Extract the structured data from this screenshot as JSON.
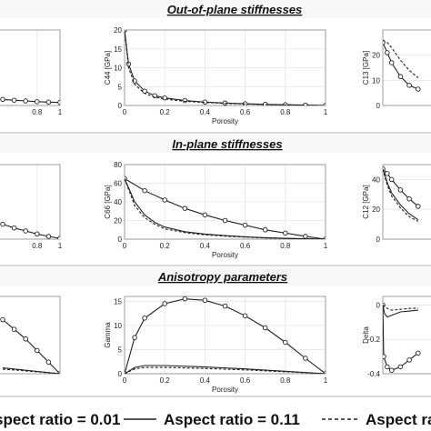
{
  "section_titles": [
    "Out-of-plane stiffnesses",
    "In-plane stiffnesses",
    "Anisotropy parameters"
  ],
  "legend": [
    {
      "label": "spect ratio = 0.01",
      "style": "none"
    },
    {
      "label": "Aspect ratio = 0.11",
      "style": "solid"
    },
    {
      "label": "Aspect ra",
      "style": "dashed"
    }
  ],
  "colors": {
    "line": "#222222",
    "frame": "#888888",
    "grid": "#e6e6e6",
    "header_bg": "#f7f7f7"
  },
  "chart_data": [
    {
      "type": "line",
      "ylabel": "",
      "xlabel": "",
      "xlim": [
        0,
        1
      ],
      "xticks": [
        0.8,
        1
      ],
      "ylim": [
        0,
        20
      ],
      "yticks": [],
      "series": [
        {
          "style": "solid",
          "markers": true,
          "x": [
            0.5,
            0.6,
            0.7,
            0.8,
            0.9,
            1.0
          ],
          "y": [
            1.6,
            1.4,
            1.2,
            1.0,
            0.9,
            0.8
          ]
        }
      ]
    },
    {
      "type": "line",
      "ylabel": "C44 [GPa]",
      "xlabel": "Porosity",
      "xlim": [
        0,
        1
      ],
      "xticks": [
        0,
        0.2,
        0.4,
        0.6,
        0.8,
        1
      ],
      "ylim": [
        0,
        20
      ],
      "yticks": [
        0,
        5,
        10,
        15,
        20
      ],
      "series": [
        {
          "style": "solid",
          "markers": true,
          "x": [
            0,
            0.02,
            0.05,
            0.1,
            0.15,
            0.2,
            0.3,
            0.4,
            0.5,
            0.6,
            0.7,
            0.8,
            0.9,
            1.0
          ],
          "y": [
            20,
            11,
            6.5,
            3.8,
            2.6,
            2.0,
            1.3,
            0.9,
            0.65,
            0.45,
            0.3,
            0.2,
            0.1,
            0
          ]
        },
        {
          "style": "dashed",
          "markers": false,
          "x": [
            0,
            0.02,
            0.05,
            0.1,
            0.15,
            0.2,
            0.3,
            0.4,
            0.5,
            0.6,
            0.7,
            0.8,
            0.9,
            1.0
          ],
          "y": [
            20,
            10,
            5.6,
            3.2,
            2.2,
            1.7,
            1.1,
            0.8,
            0.55,
            0.4,
            0.25,
            0.15,
            0.08,
            0
          ]
        }
      ]
    },
    {
      "type": "line",
      "ylabel": "C13 [GPa]",
      "xlabel": "",
      "xlim": [
        0,
        1
      ],
      "xticks": [],
      "ylim": [
        0,
        30
      ],
      "yticks": [
        0,
        10,
        20
      ],
      "series": [
        {
          "style": "solid",
          "markers": true,
          "x": [
            0,
            0.05,
            0.1,
            0.2,
            0.3,
            0.4
          ],
          "y": [
            25,
            21,
            17,
            11.5,
            8,
            6.5
          ]
        },
        {
          "style": "dashed",
          "markers": false,
          "x": [
            0,
            0.05,
            0.1,
            0.2,
            0.3,
            0.4
          ],
          "y": [
            26,
            25,
            23,
            18,
            14,
            11
          ]
        }
      ]
    },
    {
      "type": "line",
      "ylabel": "",
      "xlabel": "",
      "xlim": [
        0,
        1
      ],
      "xticks": [
        0.8,
        1
      ],
      "ylim": [
        0,
        50
      ],
      "yticks": [],
      "series": [
        {
          "style": "solid",
          "markers": true,
          "x": [
            0.5,
            0.6,
            0.7,
            0.8,
            0.9,
            1.0
          ],
          "y": [
            10,
            7.5,
            5.5,
            3.5,
            1.8,
            0.5
          ]
        }
      ]
    },
    {
      "type": "line",
      "ylabel": "C66 [GPa]",
      "xlabel": "Porosity",
      "xlim": [
        0,
        1
      ],
      "xticks": [
        0,
        0.2,
        0.4,
        0.6,
        0.8,
        1
      ],
      "ylim": [
        0,
        80
      ],
      "yticks": [
        0,
        20,
        40,
        60,
        80
      ],
      "series": [
        {
          "style": "solid",
          "markers": true,
          "x": [
            0,
            0.1,
            0.2,
            0.3,
            0.4,
            0.5,
            0.6,
            0.7,
            0.8,
            0.9,
            1.0
          ],
          "y": [
            65,
            52,
            42,
            33,
            26,
            20,
            15,
            10,
            6.5,
            3,
            0
          ]
        },
        {
          "style": "solid",
          "markers": false,
          "x": [
            0,
            0.05,
            0.1,
            0.15,
            0.2,
            0.3,
            0.4,
            0.5,
            0.6,
            0.7,
            0.8,
            0.9,
            1.0
          ],
          "y": [
            65,
            40,
            26,
            18,
            13,
            8,
            5.5,
            3.8,
            2.5,
            1.6,
            0.9,
            0.4,
            0
          ]
        },
        {
          "style": "dashed",
          "markers": false,
          "x": [
            0,
            0.05,
            0.1,
            0.15,
            0.2,
            0.3,
            0.4,
            0.5,
            0.6,
            0.7,
            0.8,
            0.9,
            1.0
          ],
          "y": [
            65,
            36,
            23,
            16,
            11,
            7,
            4.6,
            3.2,
            2.1,
            1.3,
            0.7,
            0.3,
            0
          ]
        }
      ]
    },
    {
      "type": "line",
      "ylabel": "C12 [GPa]",
      "xlabel": "",
      "xlim": [
        0,
        1
      ],
      "xticks": [],
      "ylim": [
        0,
        50
      ],
      "yticks": [
        0,
        20,
        40
      ],
      "series": [
        {
          "style": "solid",
          "markers": true,
          "x": [
            0,
            0.05,
            0.1,
            0.2,
            0.3,
            0.4
          ],
          "y": [
            47,
            44,
            40,
            33,
            27,
            22
          ]
        },
        {
          "style": "solid",
          "markers": false,
          "x": [
            0,
            0.05,
            0.1,
            0.2,
            0.3,
            0.4
          ],
          "y": [
            47,
            38,
            31,
            23,
            17,
            13
          ]
        },
        {
          "style": "dashed",
          "markers": false,
          "x": [
            0,
            0.05,
            0.1,
            0.2,
            0.3,
            0.4
          ],
          "y": [
            47,
            36,
            29,
            21,
            15,
            12
          ]
        }
      ]
    },
    {
      "type": "line",
      "ylabel": "",
      "xlabel": "",
      "xlim": [
        0,
        1
      ],
      "xticks": [],
      "ylim": [
        0,
        20
      ],
      "yticks": [],
      "series": [
        {
          "style": "solid",
          "markers": true,
          "x": [
            0.5,
            0.6,
            0.7,
            0.8,
            0.9,
            1.0
          ],
          "y": [
            14,
            11.5,
            9,
            6,
            3,
            0
          ]
        },
        {
          "style": "solid",
          "markers": false,
          "x": [
            0.5,
            1.0
          ],
          "y": [
            1.5,
            0
          ]
        },
        {
          "style": "dashed",
          "markers": false,
          "x": [
            0.5,
            1.0
          ],
          "y": [
            1.2,
            0
          ]
        }
      ]
    },
    {
      "type": "line",
      "ylabel": "Gamma",
      "xlabel": "Porosity",
      "xlim": [
        0,
        1
      ],
      "xticks": [
        0,
        0.2,
        0.4,
        0.6,
        0.8,
        1
      ],
      "ylim": [
        0,
        16
      ],
      "yticks": [
        0,
        5,
        10,
        15
      ],
      "series": [
        {
          "style": "solid",
          "markers": true,
          "x": [
            0,
            0.05,
            0.1,
            0.2,
            0.3,
            0.4,
            0.5,
            0.6,
            0.7,
            0.8,
            0.9,
            1.0
          ],
          "y": [
            0,
            7.5,
            11.5,
            14.5,
            15.5,
            15.2,
            14,
            12,
            9.5,
            6.5,
            3.2,
            0
          ]
        },
        {
          "style": "solid",
          "markers": false,
          "x": [
            0,
            0.05,
            0.1,
            0.2,
            0.4,
            0.6,
            0.8,
            1.0
          ],
          "y": [
            0,
            1.3,
            1.7,
            1.7,
            1.4,
            1.0,
            0.5,
            0
          ]
        },
        {
          "style": "dashed",
          "markers": false,
          "x": [
            0,
            0.05,
            0.1,
            0.2,
            0.4,
            0.6,
            0.8,
            1.0
          ],
          "y": [
            0,
            1.0,
            1.3,
            1.3,
            1.1,
            0.8,
            0.4,
            0
          ]
        }
      ]
    },
    {
      "type": "line",
      "ylabel": "Delta",
      "xlabel": "",
      "xlim": [
        0,
        1
      ],
      "xticks": [],
      "ylim": [
        -0.4,
        0.05
      ],
      "yticks": [
        0,
        -0.2,
        -0.4
      ],
      "series": [
        {
          "style": "solid",
          "markers": true,
          "x": [
            0,
            0.01,
            0.05,
            0.1,
            0.2,
            0.3,
            0.4
          ],
          "y": [
            0,
            -0.3,
            -0.36,
            -0.38,
            -0.36,
            -0.32,
            -0.28
          ]
        },
        {
          "style": "solid",
          "markers": false,
          "x": [
            0,
            0.02,
            0.05,
            0.1,
            0.2,
            0.3,
            0.4
          ],
          "y": [
            0,
            -0.05,
            -0.07,
            -0.06,
            -0.04,
            -0.035,
            -0.03
          ]
        },
        {
          "style": "dashed",
          "markers": false,
          "x": [
            0,
            0.05,
            0.1,
            0.2,
            0.3,
            0.4
          ],
          "y": [
            0,
            -0.02,
            -0.03,
            -0.025,
            -0.02,
            -0.018
          ]
        }
      ]
    }
  ]
}
